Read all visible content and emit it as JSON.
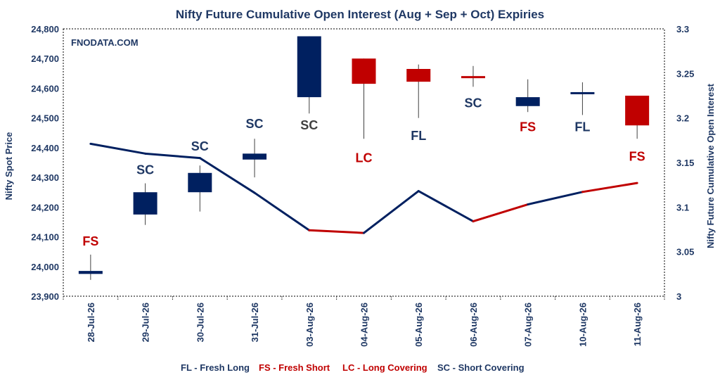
{
  "chart_data": {
    "type": "candlestick-with-line",
    "title": "Nifty Future Cumulative Open Interest (Aug + Sep + Oct) Expiries",
    "watermark": "FNODATA.COM",
    "ylabel_left": "Nifty Spot Price",
    "ylabel_right": "Nifty Future Cumulative Open Interest",
    "ylim_left": [
      23900,
      24800
    ],
    "ylim_right": [
      3,
      3.3
    ],
    "yticks_left": [
      "23,900",
      "24,000",
      "24,100",
      "24,200",
      "24,300",
      "24,400",
      "24,500",
      "24,600",
      "24,700",
      "24,800"
    ],
    "yticks_right": [
      "3",
      "3.05",
      "3.1",
      "3.15",
      "3.2",
      "3.25",
      "3.3"
    ],
    "categories": [
      "28-Jul-26",
      "29-Jul-26",
      "30-Jul-26",
      "31-Jul-26",
      "03-Aug-26",
      "04-Aug-26",
      "05-Aug-26",
      "06-Aug-26",
      "07-Aug-26",
      "10-Aug-26",
      "11-Aug-26"
    ],
    "candles": [
      {
        "open": 23975,
        "close": 23985,
        "high": 24040,
        "low": 23955,
        "color": "#002060"
      },
      {
        "open": 24175,
        "close": 24250,
        "high": 24280,
        "low": 24140,
        "color": "#002060"
      },
      {
        "open": 24250,
        "close": 24315,
        "high": 24340,
        "low": 24185,
        "color": "#002060"
      },
      {
        "open": 24360,
        "close": 24380,
        "high": 24430,
        "low": 24300,
        "color": "#002060"
      },
      {
        "open": 24570,
        "close": 24775,
        "high": 24775,
        "low": 24515,
        "color": "#002060"
      },
      {
        "open": 24700,
        "close": 24615,
        "high": 24700,
        "low": 24430,
        "color": "#c00000"
      },
      {
        "open": 24665,
        "close": 24622,
        "high": 24680,
        "low": 24500,
        "color": "#c00000"
      },
      {
        "open": 24641,
        "close": 24638,
        "high": 24675,
        "low": 24605,
        "color": "#c00000"
      },
      {
        "open": 24540,
        "close": 24570,
        "high": 24630,
        "low": 24520,
        "color": "#002060"
      },
      {
        "open": 24585,
        "close": 24587,
        "high": 24620,
        "low": 24510,
        "color": "#002060"
      },
      {
        "open": 24575,
        "close": 24475,
        "high": 24575,
        "low": 24430,
        "color": "#c00000"
      }
    ],
    "series": [
      {
        "values": [
          3.171,
          3.16,
          3.155,
          3.116,
          3.074,
          3.071,
          3.118,
          3.084,
          3.103,
          3.117,
          3.127
        ]
      }
    ],
    "segment_colors": [
      "#002060",
      "#002060",
      "#002060",
      "#002060",
      "#c00000",
      "#002060",
      "#002060",
      "#c00000",
      "#002060",
      "#c00000"
    ],
    "annotations": [
      {
        "label": "FS",
        "color": "#c00000",
        "y": 24085
      },
      {
        "label": "SC",
        "color": "#1f3864",
        "y": 24325
      },
      {
        "label": "SC",
        "color": "#1f3864",
        "y": 24405
      },
      {
        "label": "SC",
        "color": "#1f3864",
        "y": 24480
      },
      {
        "label": "SC",
        "color": "#404040",
        "y": 24475
      },
      {
        "label": "LC",
        "color": "#c00000",
        "y": 24365
      },
      {
        "label": "FL",
        "color": "#1f3864",
        "y": 24440
      },
      {
        "label": "SC",
        "color": "#1f3864",
        "y": 24550
      },
      {
        "label": "FS",
        "color": "#c00000",
        "y": 24470
      },
      {
        "label": "FL",
        "color": "#1f3864",
        "y": 24470
      },
      {
        "label": "FS",
        "color": "#c00000",
        "y": 24370
      }
    ],
    "legend": [
      {
        "text": "FL - Fresh Long",
        "color": "#1f3864"
      },
      {
        "text": "FS - Fresh Short",
        "color": "#c00000"
      },
      {
        "text": "LC - Long Covering",
        "color": "#c00000"
      },
      {
        "text": "SC - Short Covering",
        "color": "#1f3864"
      }
    ],
    "legend_placement": "bottom",
    "grid": false
  }
}
